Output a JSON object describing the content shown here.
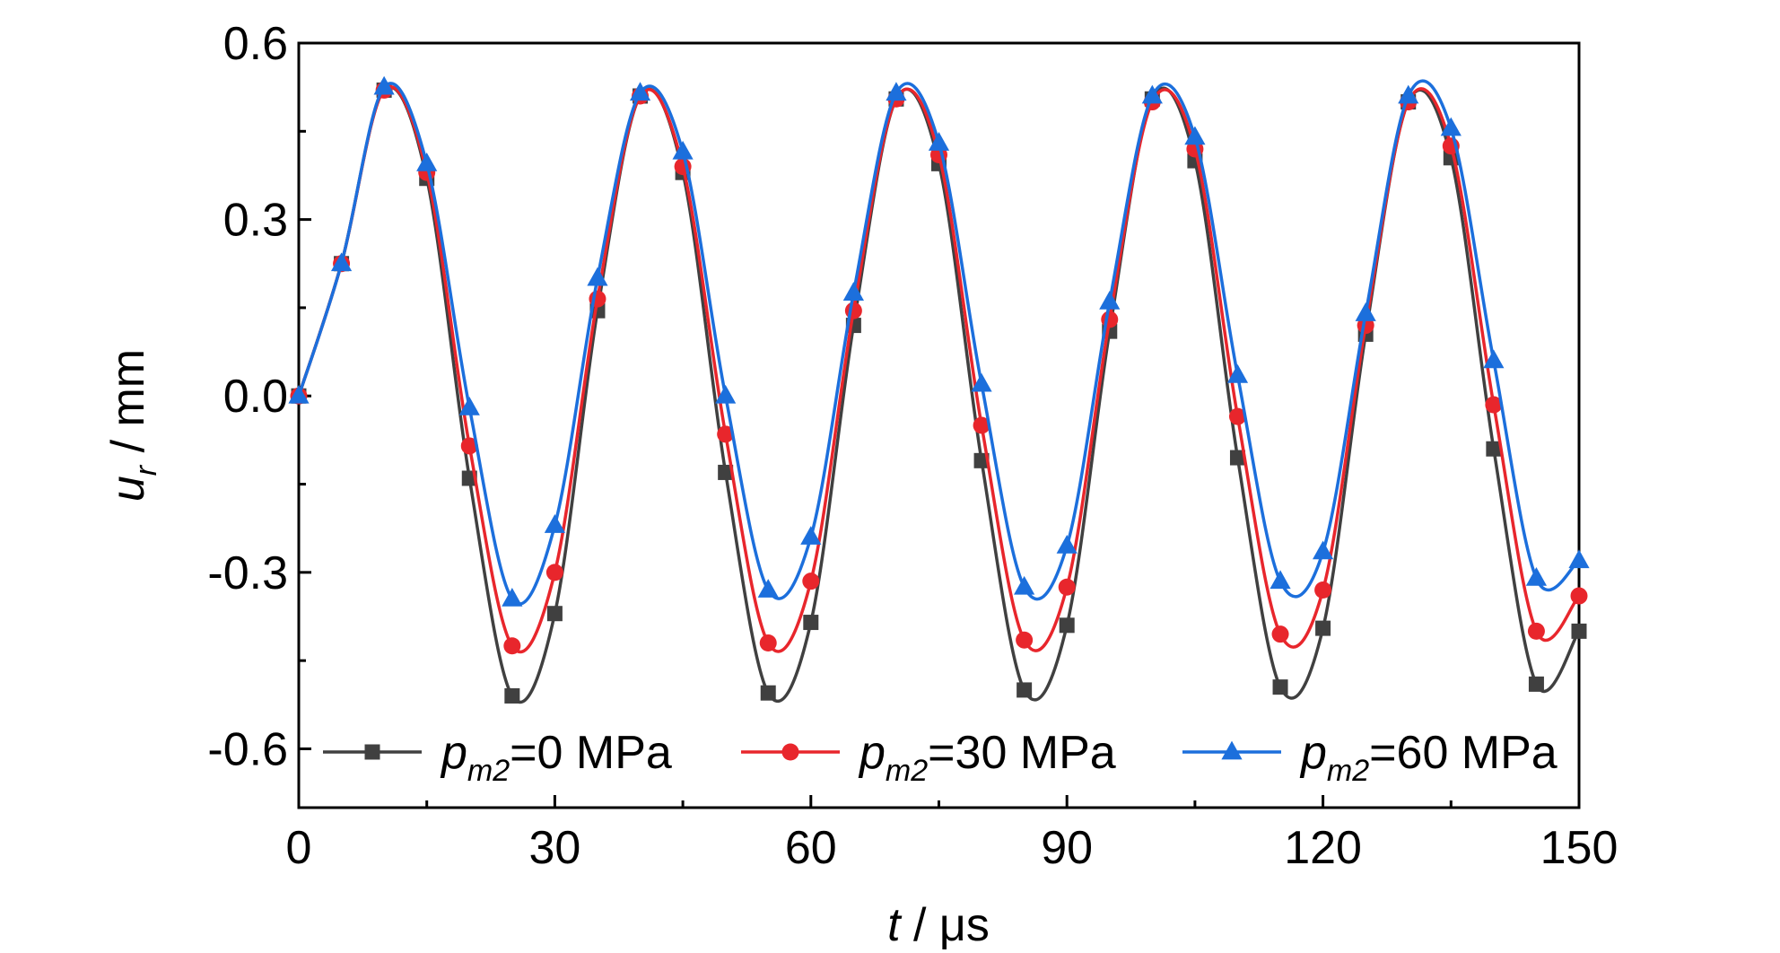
{
  "chart_data": {
    "type": "line",
    "title": "",
    "xlabel": {
      "main": "t",
      "unit": " / μs"
    },
    "ylabel": {
      "main": "u",
      "sub": "r",
      "unit": " / mm"
    },
    "xlim": [
      0,
      150
    ],
    "ylim": [
      -0.7,
      0.6
    ],
    "xticks": [
      0,
      30,
      60,
      90,
      120,
      150
    ],
    "xtick_labels": [
      "0",
      "30",
      "60",
      "90",
      "120",
      "150"
    ],
    "yticks": [
      0.6,
      0.3,
      0.0,
      -0.3,
      -0.6
    ],
    "ytick_labels": [
      "0.6",
      "0.3",
      "0.0",
      "-0.3",
      "-0.6"
    ],
    "grid": false,
    "legend_position": "bottom",
    "x": [
      0,
      5,
      10,
      15,
      20,
      25,
      30,
      35,
      40,
      45,
      50,
      55,
      60,
      65,
      70,
      75,
      80,
      85,
      90,
      95,
      100,
      105,
      110,
      115,
      120,
      125,
      130,
      135,
      140,
      145,
      150
    ],
    "series": [
      {
        "legend_main": "p",
        "legend_sub": "m2",
        "legend_rest": "=0 MPa",
        "color": "#404040",
        "marker": "square",
        "y": [
          0.0,
          0.225,
          0.52,
          0.37,
          -0.14,
          -0.51,
          -0.37,
          0.145,
          0.51,
          0.38,
          -0.13,
          -0.505,
          -0.385,
          0.12,
          0.505,
          0.395,
          -0.11,
          -0.5,
          -0.39,
          0.11,
          0.505,
          0.4,
          -0.105,
          -0.495,
          -0.395,
          0.105,
          0.5,
          0.405,
          -0.09,
          -0.49,
          -0.4
        ]
      },
      {
        "legend_main": "p",
        "legend_sub": "m2",
        "legend_rest": "=30 MPa",
        "color": "#e8262c",
        "marker": "circle",
        "y": [
          0.0,
          0.225,
          0.52,
          0.38,
          -0.085,
          -0.425,
          -0.3,
          0.165,
          0.51,
          0.39,
          -0.065,
          -0.42,
          -0.315,
          0.145,
          0.505,
          0.41,
          -0.05,
          -0.415,
          -0.325,
          0.13,
          0.5,
          0.42,
          -0.035,
          -0.405,
          -0.33,
          0.12,
          0.5,
          0.425,
          -0.015,
          -0.4,
          -0.34
        ]
      },
      {
        "legend_main": "p",
        "legend_sub": "m2",
        "legend_rest": "=60 MPa",
        "color": "#1c6fdc",
        "marker": "triangle",
        "y": [
          0.0,
          0.225,
          0.525,
          0.395,
          -0.02,
          -0.345,
          -0.22,
          0.2,
          0.515,
          0.415,
          0.0,
          -0.33,
          -0.24,
          0.175,
          0.515,
          0.43,
          0.02,
          -0.325,
          -0.255,
          0.16,
          0.51,
          0.44,
          0.035,
          -0.315,
          -0.265,
          0.14,
          0.51,
          0.455,
          0.06,
          -0.31,
          -0.28
        ]
      }
    ]
  }
}
